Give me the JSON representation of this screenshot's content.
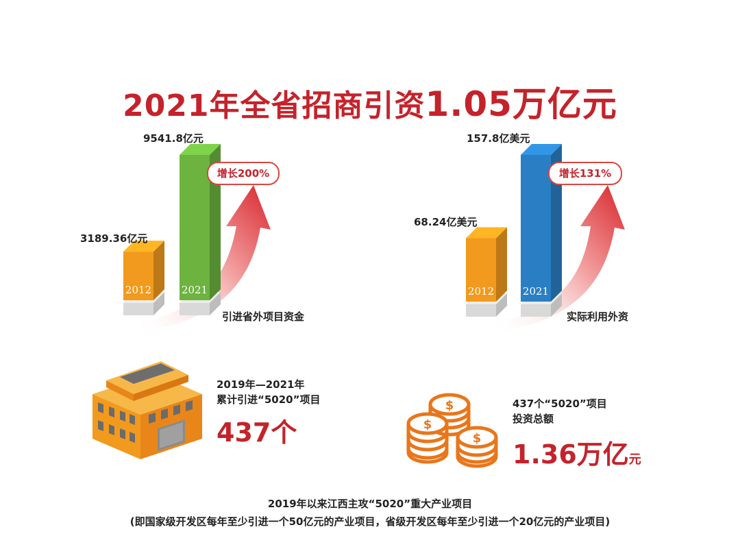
{
  "title": {
    "prefix": "2021年全省招商引资",
    "value": "1.05万亿元"
  },
  "chart_data": [
    {
      "type": "bar",
      "xlabel": "引进省外项目资金",
      "categories": [
        "2012",
        "2021"
      ],
      "values": [
        3189.36,
        9541.8
      ],
      "value_labels": [
        "3189.36亿元",
        "9541.8亿元"
      ],
      "unit": "亿元",
      "growth_label": "增长200%",
      "colors": [
        "#f29a1d",
        "#6cb33f"
      ]
    },
    {
      "type": "bar",
      "xlabel": "实际利用外资",
      "categories": [
        "2012",
        "2021"
      ],
      "values": [
        68.24,
        157.8
      ],
      "value_labels": [
        "68.24亿美元",
        "157.8亿美元"
      ],
      "unit": "亿美元",
      "growth_label": "增长131%",
      "colors": [
        "#f29a1d",
        "#2a7fc4"
      ]
    }
  ],
  "stats": [
    {
      "line1": "2019年—2021年",
      "line2": "累计引进“5020”项目",
      "value": "437个",
      "icon": "building-icon"
    },
    {
      "line1": "437个“5020”项目",
      "line2": "投资总额",
      "value": "1.36万亿",
      "value_suffix": "元",
      "icon": "coins-icon"
    }
  ],
  "footer": {
    "line1": "2019年以来江西主攻“5020”重大产业项目",
    "line2": "(即国家级开发区每年至少引进一个50亿元的产业项目，省级开发区每年至少引进一个20亿元的产业项目)"
  },
  "colors": {
    "accent_red": "#c4232b",
    "orange": "#f29a1d",
    "green": "#6cb33f",
    "blue": "#2a7fc4"
  }
}
